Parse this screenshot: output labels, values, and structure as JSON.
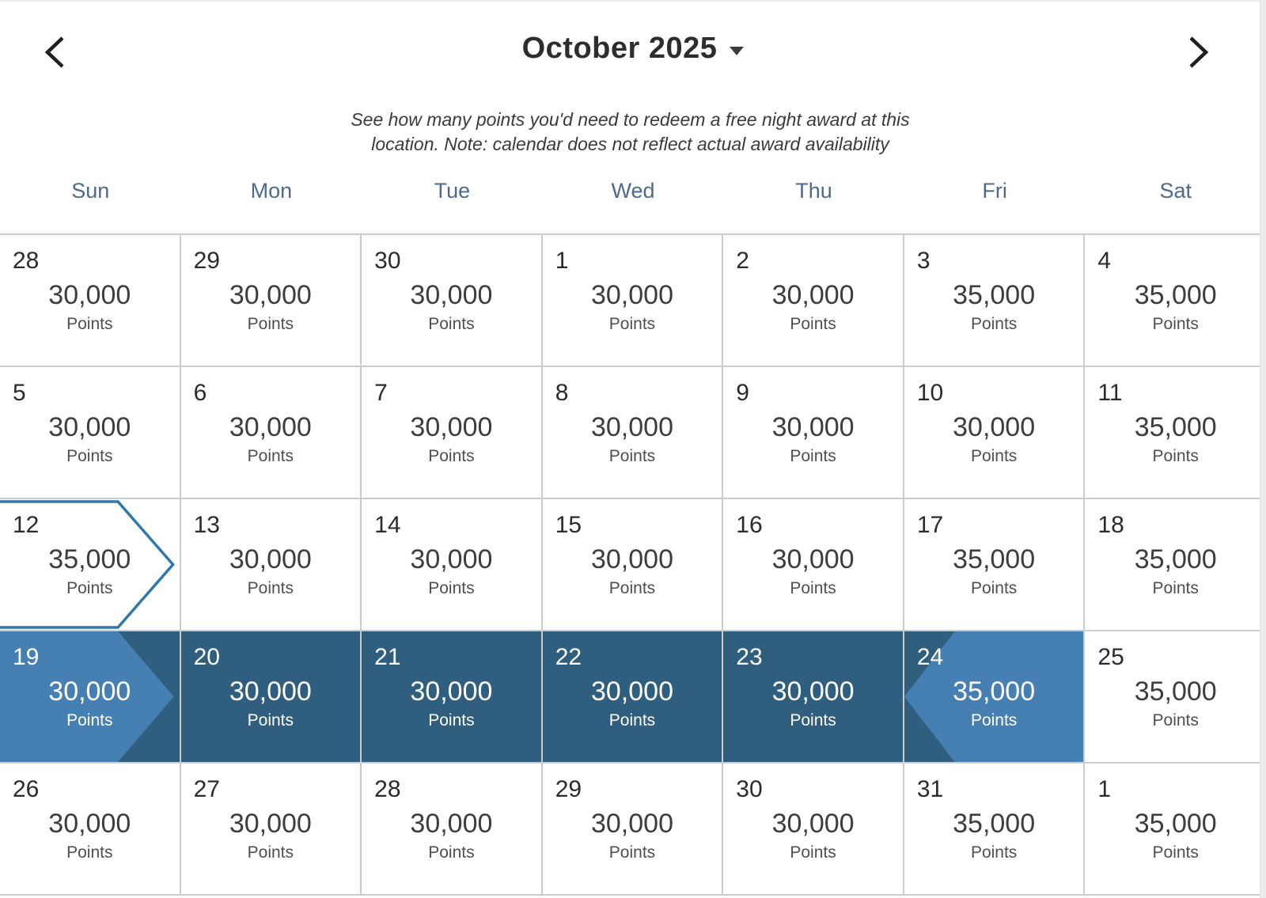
{
  "header": {
    "title": "October 2025",
    "subtitle": "See how many points you'd need to redeem a free night award at this location. Note: calendar does not reflect actual award availability",
    "prev_icon": "chevron-left",
    "next_icon": "chevron-right",
    "dropdown_icon": "caret-down"
  },
  "weekdays": [
    "Sun",
    "Mon",
    "Tue",
    "Wed",
    "Thu",
    "Fri",
    "Sat"
  ],
  "points_label": "Points",
  "colors": {
    "range_light": "#4680B2",
    "range_dark": "#2F5E7E",
    "today_outline": "#3077AB",
    "weekday_text": "#4D6A8A",
    "grid_line": "#CCCCCC"
  },
  "weeks": [
    [
      {
        "day": "28",
        "points": "30,000",
        "state": "normal"
      },
      {
        "day": "29",
        "points": "30,000",
        "state": "normal"
      },
      {
        "day": "30",
        "points": "30,000",
        "state": "normal"
      },
      {
        "day": "1",
        "points": "30,000",
        "state": "normal"
      },
      {
        "day": "2",
        "points": "30,000",
        "state": "normal"
      },
      {
        "day": "3",
        "points": "35,000",
        "state": "normal"
      },
      {
        "day": "4",
        "points": "35,000",
        "state": "normal"
      }
    ],
    [
      {
        "day": "5",
        "points": "30,000",
        "state": "normal"
      },
      {
        "day": "6",
        "points": "30,000",
        "state": "normal"
      },
      {
        "day": "7",
        "points": "30,000",
        "state": "normal"
      },
      {
        "day": "8",
        "points": "30,000",
        "state": "normal"
      },
      {
        "day": "9",
        "points": "30,000",
        "state": "normal"
      },
      {
        "day": "10",
        "points": "30,000",
        "state": "normal"
      },
      {
        "day": "11",
        "points": "35,000",
        "state": "normal"
      }
    ],
    [
      {
        "day": "12",
        "points": "35,000",
        "state": "today"
      },
      {
        "day": "13",
        "points": "30,000",
        "state": "normal"
      },
      {
        "day": "14",
        "points": "30,000",
        "state": "normal"
      },
      {
        "day": "15",
        "points": "30,000",
        "state": "normal"
      },
      {
        "day": "16",
        "points": "30,000",
        "state": "normal"
      },
      {
        "day": "17",
        "points": "35,000",
        "state": "normal"
      },
      {
        "day": "18",
        "points": "35,000",
        "state": "normal"
      }
    ],
    [
      {
        "day": "19",
        "points": "30,000",
        "state": "range-start"
      },
      {
        "day": "20",
        "points": "30,000",
        "state": "range-mid"
      },
      {
        "day": "21",
        "points": "30,000",
        "state": "range-mid"
      },
      {
        "day": "22",
        "points": "30,000",
        "state": "range-mid"
      },
      {
        "day": "23",
        "points": "30,000",
        "state": "range-mid"
      },
      {
        "day": "24",
        "points": "35,000",
        "state": "range-end"
      },
      {
        "day": "25",
        "points": "35,000",
        "state": "normal"
      }
    ],
    [
      {
        "day": "26",
        "points": "30,000",
        "state": "normal"
      },
      {
        "day": "27",
        "points": "30,000",
        "state": "normal"
      },
      {
        "day": "28",
        "points": "30,000",
        "state": "normal"
      },
      {
        "day": "29",
        "points": "30,000",
        "state": "normal"
      },
      {
        "day": "30",
        "points": "30,000",
        "state": "normal"
      },
      {
        "day": "31",
        "points": "35,000",
        "state": "normal"
      },
      {
        "day": "1",
        "points": "35,000",
        "state": "normal"
      }
    ]
  ]
}
